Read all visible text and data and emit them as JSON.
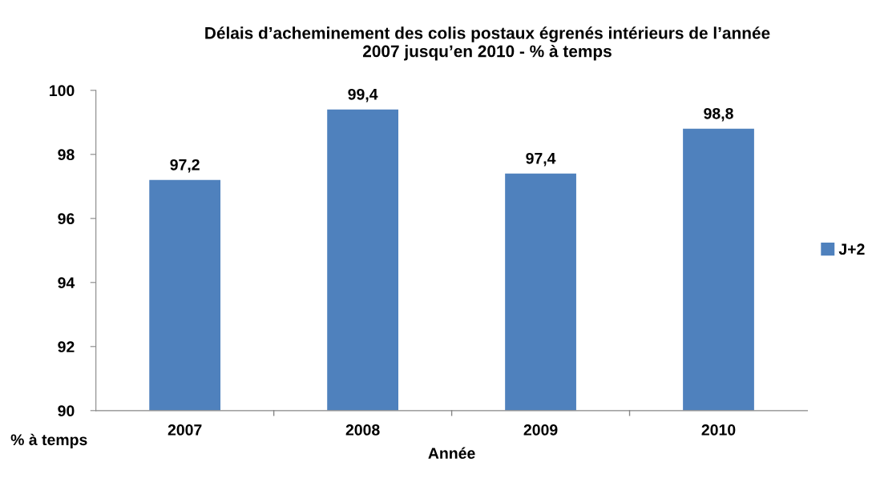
{
  "chart_data": {
    "type": "bar",
    "title": "Délais d’acheminement des colis postaux égrenés intérieurs de l’année\n2007 jusqu’en 2010 - % à temps",
    "xlabel": "Année",
    "ylabel": "% à temps",
    "categories": [
      "2007",
      "2008",
      "2009",
      "2010"
    ],
    "series": [
      {
        "name": "J+2",
        "color": "#4f81bd",
        "values": [
          97.2,
          99.4,
          97.4,
          98.8
        ]
      }
    ],
    "value_labels": [
      "97,2",
      "99,4",
      "97,4",
      "98,8"
    ],
    "ylim": [
      90,
      100
    ],
    "yticks": [
      90,
      92,
      94,
      96,
      98,
      100
    ],
    "grid": false,
    "legend": "right"
  }
}
